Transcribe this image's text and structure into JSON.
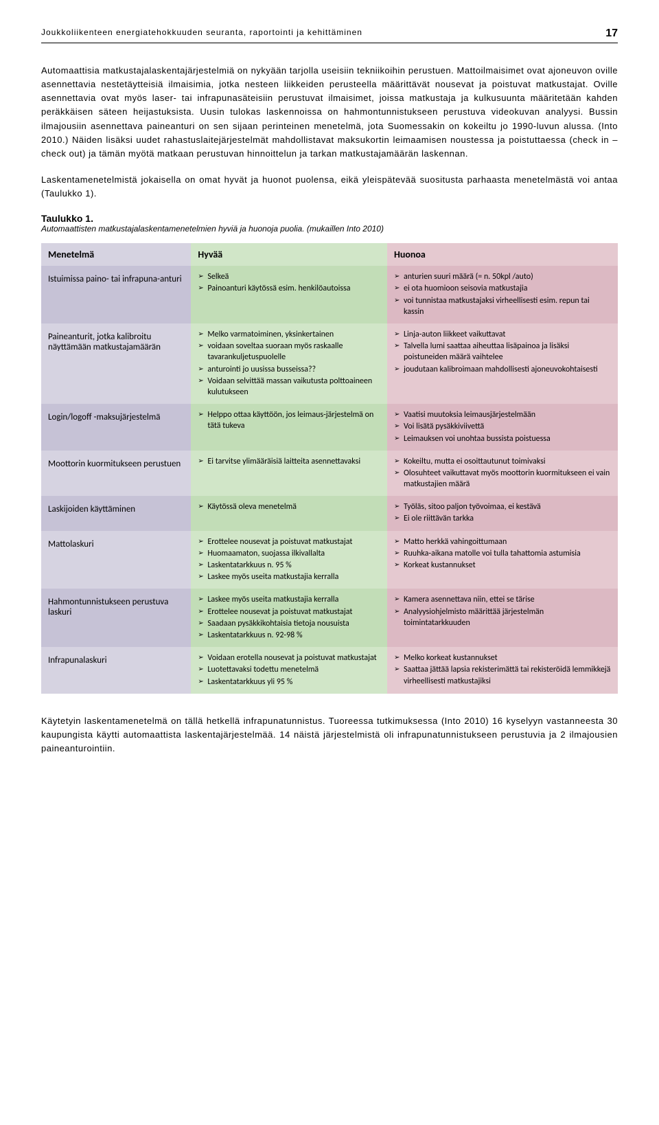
{
  "header": {
    "title": "Joukkoliikenteen energiatehokkuuden seuranta, raportointi ja kehittäminen",
    "pageNumber": "17"
  },
  "paragraphs": {
    "p1": "Automaattisia matkustajalaskentajärjestelmiä on nykyään tarjolla useisiin tekniikoihin perustuen. Mattoilmaisimet ovat ajoneuvon oville asennettavia nestetäytteisiä ilmaisimia, jotka nesteen liikkeiden perusteella määrittävät nousevat ja poistuvat matkustajat. Oville asennettavia ovat myös laser- tai infrapunasäteisiin perustuvat ilmaisimet, joissa matkustaja ja kulkusuunta määritetään kahden peräkkäisen säteen heijastuksista. Uusin tulokas laskennoissa on hahmontunnistukseen perustuva videokuvan analyysi. Bussin ilmajousiin asennettava paineanturi on sen sijaan perinteinen menetelmä, jota Suomessakin on kokeiltu jo 1990-luvun alussa. (Into 2010.) Näiden lisäksi uudet rahastuslaitejärjestelmät mahdollistavat maksukortin leimaamisen noustessa ja poistuttaessa (check in – check out) ja tämän myötä matkaan perustuvan hinnoittelun ja tarkan matkustajamäärän laskennan.",
    "p2": "Laskentamenetelmistä jokaisella on omat hyvät ja huonot puolensa, eikä yleispätevää suositusta parhaasta menetelmästä voi antaa (Taulukko 1).",
    "p3": "Käytetyin laskentamenetelmä on tällä hetkellä infrapunatunnistus. Tuoreessa tutkimuksessa (Into 2010) 16 kyselyyn vastanneesta 30 kaupungista käytti automaattista laskentajärjestelmää. 14 näistä järjestelmistä oli infrapunatunnistukseen perustuvia ja 2 ilmajousien paineanturointiin."
  },
  "tableHeading": "Taulukko 1.",
  "tableCaption": "Automaattisten matkustajalaskentamenetelmien hyviä ja huonoja puolia. (mukaillen Into 2010)",
  "table": {
    "colors": {
      "headerBg": "#ffffff",
      "methodBg": "#d6d3e1",
      "methodBgAlt": "#c6c2d6",
      "goodBg": "#d1e6c8",
      "goodBgAlt": "#c2ddb7",
      "badBg": "#e5c9d0",
      "badBgAlt": "#dcb9c3",
      "text": "#000000"
    },
    "headers": {
      "method": "Menetelmä",
      "good": "Hyvää",
      "bad": "Huonoa"
    },
    "rows": [
      {
        "method": "Istuimissa paino- tai infrapuna-anturi",
        "good": [
          "Selkeä",
          "Painoanturi käytössä esim. henkilöautoissa"
        ],
        "bad": [
          "anturien suuri määrä (= n. 50kpl /auto)",
          "ei ota huomioon seisovia matkustajia",
          "voi tunnistaa matkustajaksi virheellisesti esim. repun tai kassin"
        ]
      },
      {
        "method": "Paineanturit, jotka kalibroitu näyttämään matkustajamäärän",
        "good": [
          "Melko varmatoiminen, yksinkertainen",
          "voidaan soveltaa suoraan myös raskaalle tavarankuljetuspuolelle",
          "anturointi jo uusissa busseissa??",
          "Voidaan selvittää massan vaikutusta polttoaineen kulutukseen"
        ],
        "bad": [
          "Linja-auton liikkeet vaikuttavat",
          "Talvella lumi saattaa aiheuttaa lisäpainoa ja lisäksi poistuneiden määrä vaihtelee",
          "joudutaan kalibroimaan mahdollisesti ajoneuvokohtaisesti"
        ]
      },
      {
        "method": "Login/logoff -maksujärjestelmä",
        "good": [
          "Helppo ottaa käyttöön, jos leimaus-järjestelmä on tätä tukeva"
        ],
        "bad": [
          "Vaatisi muutoksia leimausjärjestelmään",
          "Voi lisätä pysäkkiviivettä",
          "Leimauksen voi unohtaa bussista poistuessa"
        ]
      },
      {
        "method": "Moottorin kuormitukseen perustuen",
        "good": [
          "Ei tarvitse ylimääräisiä laitteita asennettavaksi"
        ],
        "bad": [
          "Kokeiltu, mutta ei osoittautunut toimivaksi",
          "Olosuhteet vaikuttavat myös moottorin kuormitukseen ei vain matkustajien määrä"
        ]
      },
      {
        "method": "Laskijoiden käyttäminen",
        "good": [
          "Käytössä oleva menetelmä"
        ],
        "bad": [
          "Työläs, sitoo paljon työvoimaa, ei kestävä",
          "Ei ole riittävän tarkka"
        ]
      },
      {
        "method": "Mattolaskuri",
        "good": [
          "Erottelee nousevat ja poistuvat matkustajat",
          "Huomaamaton, suojassa ilkivallalta",
          "Laskentatarkkuus n. 95 %",
          "Laskee myös useita matkustajia kerralla"
        ],
        "bad": [
          "Matto herkkä vahingoittumaan",
          "Ruuhka-aikana matolle voi tulla tahattomia astumisia",
          "Korkeat kustannukset"
        ]
      },
      {
        "method": "Hahmontunnistukseen perustuva laskuri",
        "good": [
          "Laskee myös useita matkustajia kerralla",
          "Erottelee nousevat ja poistuvat matkustajat",
          "Saadaan pysäkkikohtaisia tietoja nousuista",
          "Laskentatarkkuus n. 92-98 %"
        ],
        "bad": [
          "Kamera asennettava niin, ettei se tärise",
          "Analyysiohjelmisto määrittää järjestelmän toimintatarkkuuden"
        ]
      },
      {
        "method": "Infrapunalaskuri",
        "good": [
          "Voidaan erotella nousevat ja poistuvat matkustajat",
          "Luotettavaksi todettu menetelmä",
          "Laskentatarkkuus yli 95 %"
        ],
        "bad": [
          "Melko korkeat kustannukset",
          "Saattaa jättää lapsia rekisterimättä tai rekisteröidä lemmikkejä virheellisesti matkustajiksi"
        ]
      }
    ]
  }
}
